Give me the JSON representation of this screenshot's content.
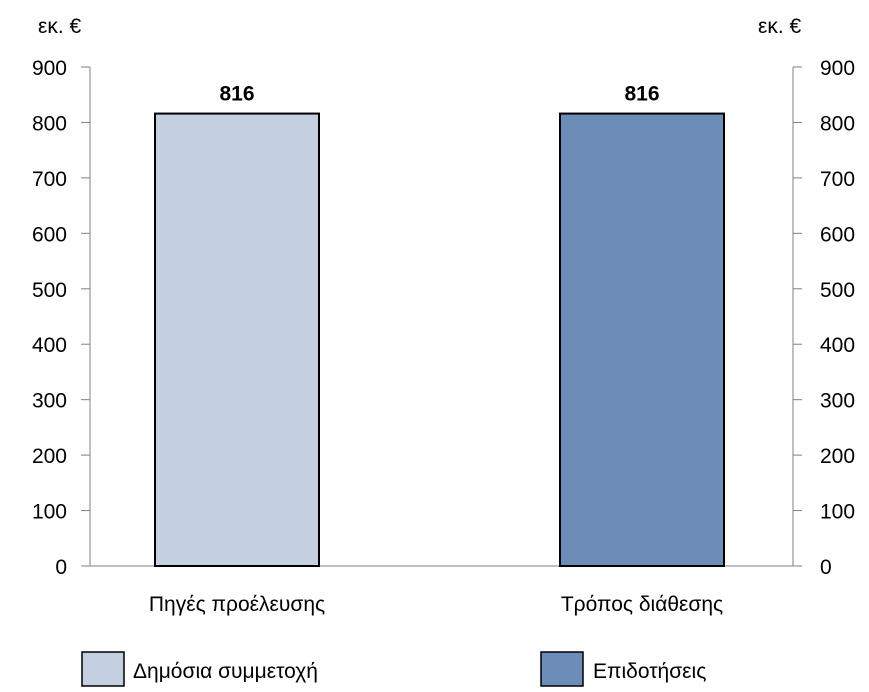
{
  "chart_data": {
    "type": "bar",
    "title": "",
    "left_axis": {
      "unit": "εκ. €",
      "ylim": [
        0,
        900
      ],
      "ticks": [
        0,
        100,
        200,
        300,
        400,
        500,
        600,
        700,
        800,
        900
      ]
    },
    "right_axis": {
      "unit": "εκ. €",
      "ylim": [
        0,
        900
      ],
      "ticks": [
        0,
        100,
        200,
        300,
        400,
        500,
        600,
        700,
        800,
        900
      ]
    },
    "categories": [
      "Πηγές προέλευσης",
      "Τρόπος διάθεσης"
    ],
    "series": [
      {
        "name": "Δημόσια συμμετοχή",
        "color": "#c4cfe2",
        "values": [
          816,
          null
        ]
      },
      {
        "name": "Επιδοτήσεις",
        "color": "#6b8db8",
        "values": [
          null,
          816
        ]
      }
    ],
    "data_labels": [
      "816",
      "816"
    ],
    "grid": false,
    "legend_position": "bottom"
  }
}
